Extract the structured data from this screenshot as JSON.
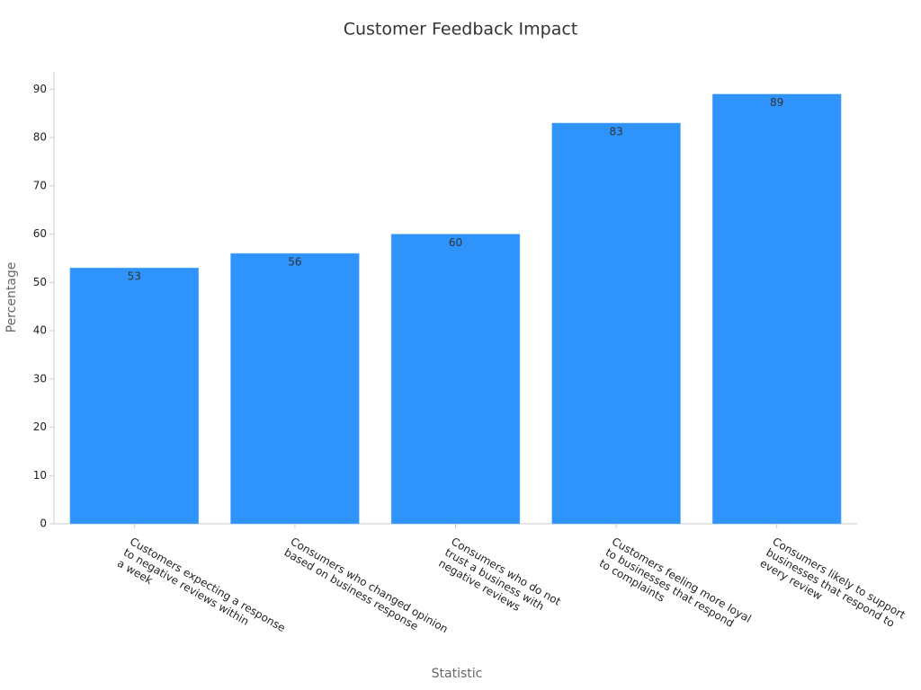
{
  "chart_data": {
    "type": "bar",
    "title": "Customer Feedback Impact",
    "x_label": "Statistic",
    "y_label": "Percentage",
    "categories": [
      [
        "Customers expecting a response",
        "to negative reviews within",
        "a week"
      ],
      [
        "Consumers who changed opinion",
        "based on business response"
      ],
      [
        "Consumers who do not",
        "trust a business with",
        "negative reviews"
      ],
      [
        "Customers feeling more loyal",
        "to businesses that respond",
        "to complaints"
      ],
      [
        "Consumers likely to support",
        "businesses that respond to",
        "every review"
      ]
    ],
    "values": [
      53,
      56,
      60,
      83,
      89
    ],
    "color": "#2e93fa",
    "ylim": [
      0,
      93.6
    ],
    "yticks": [
      0,
      10,
      20,
      30,
      40,
      50,
      60,
      70,
      80,
      90
    ],
    "grid": false
  }
}
